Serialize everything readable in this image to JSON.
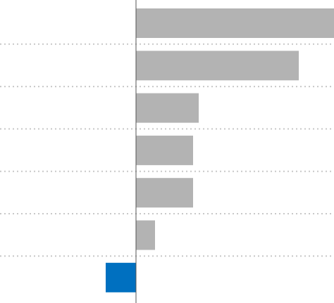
{
  "chart_data": {
    "type": "bar",
    "orientation": "horizontal",
    "categories": [
      null,
      null,
      null,
      null,
      null,
      null,
      null
    ],
    "values": [
      281,
      231,
      89,
      81,
      81,
      27,
      -43
    ],
    "colors": [
      "#b3b3b3",
      "#b3b3b3",
      "#b3b3b3",
      "#b3b3b3",
      "#b3b3b3",
      "#b3b3b3",
      "#0070c0"
    ],
    "xlim": [
      -193,
      281
    ]
  }
}
